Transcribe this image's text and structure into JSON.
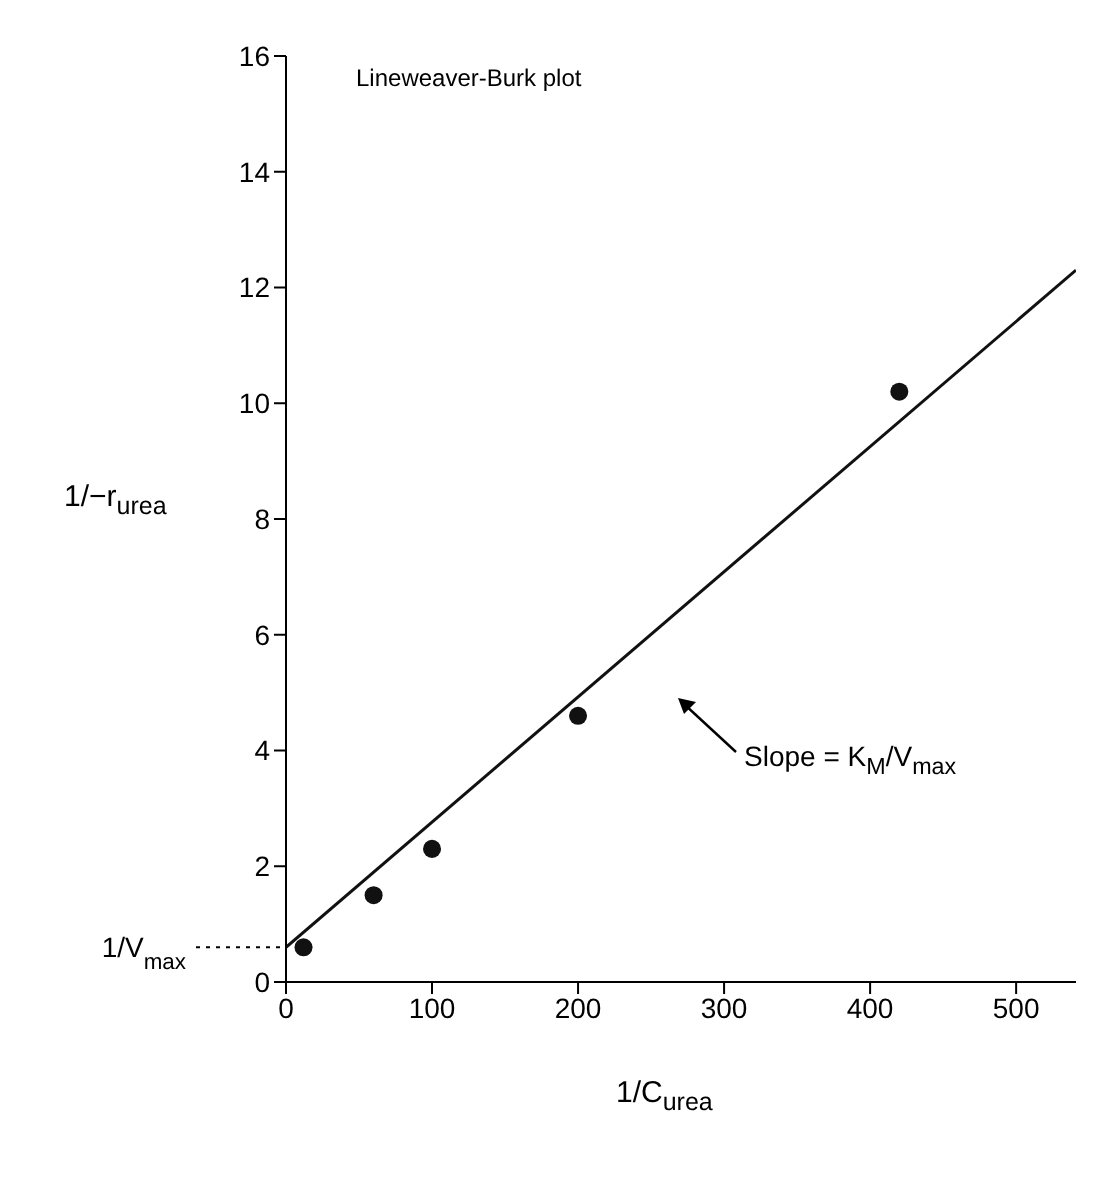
{
  "chart_data": {
    "type": "scatter",
    "title": "Lineweaver-Burk plot",
    "xlabel": "1/C$_{urea}$",
    "ylabel": "1/−r$_{urea}$",
    "xlim": [
      0,
      541
    ],
    "xticks": [
      0,
      100,
      200,
      300,
      400,
      500
    ],
    "ylim": [
      0,
      16
    ],
    "yticks": [
      0,
      2,
      4,
      6,
      8,
      10,
      12,
      14,
      16
    ],
    "marker": "circle",
    "series": [
      {
        "color": "#111111",
        "x": [
          12,
          60,
          100,
          200,
          420
        ],
        "values": [
          0.6,
          1.5,
          2.3,
          4.6,
          10.2
        ]
      },
      {
        "type": "line",
        "color": "#111111",
        "marker": "none",
        "x": [
          0,
          541
        ],
        "values": [
          0.6,
          12.3
        ]
      }
    ],
    "annotations": [
      {
        "text": "1/V$_{max}$",
        "x": 0,
        "y": 0.6
      },
      "Slope = K$_{M}$/V$_{max}$"
    ]
  }
}
